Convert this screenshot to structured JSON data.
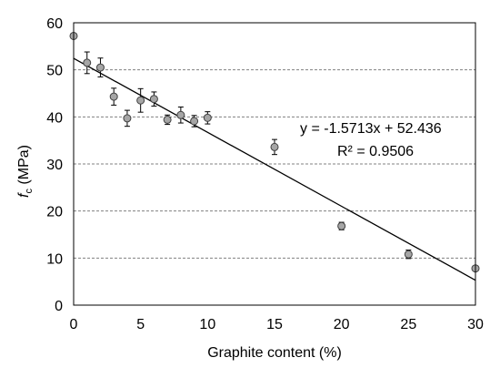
{
  "chart_data": {
    "type": "scatter",
    "xlabel": "Graphite content (%)",
    "ylabel_main": "f",
    "ylabel_sub": "c",
    "ylabel_unit": " (MPa)",
    "xlim": [
      0,
      30
    ],
    "ylim": [
      0,
      60
    ],
    "xticks": [
      "0",
      "5",
      "10",
      "15",
      "20",
      "25",
      "30"
    ],
    "yticks": [
      "0",
      "10",
      "20",
      "30",
      "40",
      "50",
      "60"
    ],
    "grid": "horizontal dashed",
    "points": [
      {
        "x": 0,
        "y": 57.2,
        "err": 0
      },
      {
        "x": 1,
        "y": 51.5,
        "err": 2.3
      },
      {
        "x": 2,
        "y": 50.5,
        "err": 2.0
      },
      {
        "x": 3,
        "y": 44.3,
        "err": 1.8
      },
      {
        "x": 4,
        "y": 39.7,
        "err": 1.7
      },
      {
        "x": 5,
        "y": 43.5,
        "err": 2.5
      },
      {
        "x": 6,
        "y": 43.8,
        "err": 1.5
      },
      {
        "x": 7,
        "y": 39.4,
        "err": 1.0
      },
      {
        "x": 8,
        "y": 40.4,
        "err": 1.7
      },
      {
        "x": 9,
        "y": 39.1,
        "err": 1.2
      },
      {
        "x": 10,
        "y": 39.8,
        "err": 1.3
      },
      {
        "x": 15,
        "y": 33.6,
        "err": 1.6
      },
      {
        "x": 20,
        "y": 16.8,
        "err": 0.8
      },
      {
        "x": 25,
        "y": 10.8,
        "err": 0.9
      },
      {
        "x": 30,
        "y": 7.8,
        "err": 0
      }
    ],
    "trendline": {
      "slope": -1.5713,
      "intercept": 52.436
    },
    "annotations": {
      "equation": "y = -1.5713x + 52.436",
      "r_squared": "R² = 0.9506"
    },
    "colors": {
      "marker_fill": "#a6a6a6",
      "marker_stroke": "#404040",
      "line": "#000000",
      "grid": "#808080"
    }
  }
}
